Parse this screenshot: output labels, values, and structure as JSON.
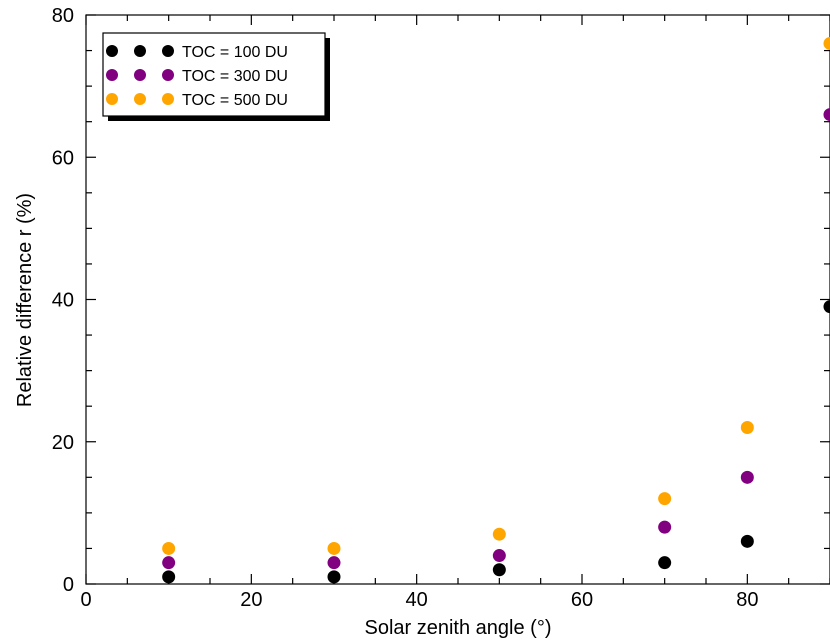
{
  "chart_data": {
    "type": "scatter",
    "xlabel": "Solar zenith angle (°)",
    "ylabel": "Relative difference r (%)",
    "xlim": [
      0,
      90
    ],
    "ylim": [
      0,
      80
    ],
    "x_ticks": [
      0,
      20,
      40,
      60,
      80
    ],
    "y_ticks": [
      0,
      20,
      40,
      60,
      80
    ],
    "x_minor_step": 5,
    "y_minor_step": 5,
    "grid": false,
    "legend_position": "top-left",
    "series": [
      {
        "name": "TOC = 100 DU",
        "color": "#000000",
        "x": [
          10,
          30,
          50,
          70,
          80,
          90
        ],
        "y": [
          1,
          1,
          2,
          3,
          6,
          39
        ]
      },
      {
        "name": "TOC = 300 DU",
        "color": "#800080",
        "x": [
          10,
          30,
          50,
          70,
          80,
          90
        ],
        "y": [
          3,
          3,
          4,
          8,
          15,
          66
        ]
      },
      {
        "name": "TOC = 500 DU",
        "color": "#FFA500",
        "x": [
          10,
          30,
          50,
          70,
          80,
          90
        ],
        "y": [
          5,
          5,
          7,
          12,
          22,
          76
        ]
      }
    ]
  }
}
